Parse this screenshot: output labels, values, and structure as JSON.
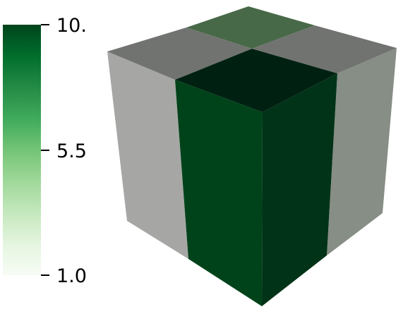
{
  "colorbar": {
    "ticks": [
      {
        "label": "10.",
        "value": 10.0
      },
      {
        "label": "5.5",
        "value": 5.5
      },
      {
        "label": "1.0",
        "value": 1.0
      }
    ],
    "range": [
      1.0,
      10.0
    ],
    "colormap": {
      "name": "Greens",
      "top_color": "#00441b",
      "mid_color": "#74c476",
      "bottom_color": "#f7fcf5"
    }
  },
  "scene": {
    "background": "#ffffff",
    "object": "cube"
  }
}
